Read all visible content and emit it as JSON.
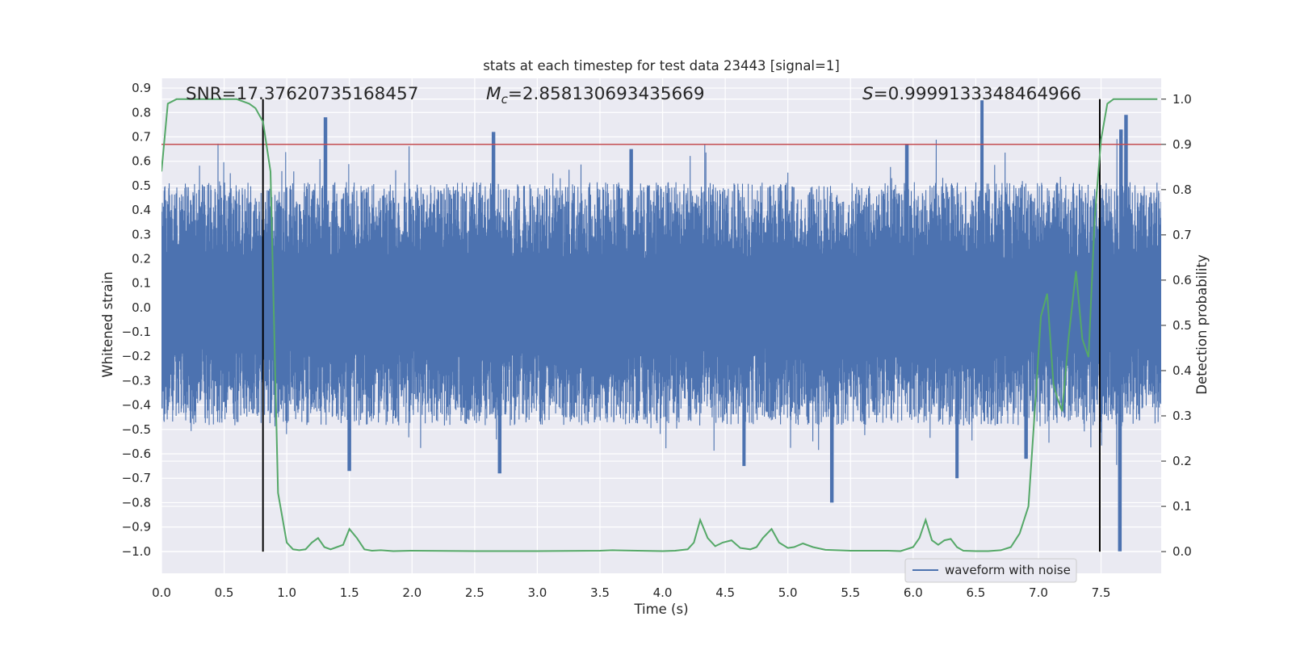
{
  "chart_data": {
    "type": "line",
    "title": "stats at each timestep for test data 23443 [signal=1]",
    "xlabel": "Time (s)",
    "ylabel_left": "Whitened strain",
    "ylabel_right": "Detection probability",
    "xlim": [
      0.0,
      7.98
    ],
    "ylim_left": [
      -1.09,
      0.94
    ],
    "ylim_right": [
      -0.048,
      1.046
    ],
    "x_ticks": [
      0.0,
      0.5,
      1.0,
      1.5,
      2.0,
      2.5,
      3.0,
      3.5,
      4.0,
      4.5,
      5.0,
      5.5,
      6.0,
      6.5,
      7.0,
      7.5
    ],
    "x_tick_labels": [
      "0.0",
      "0.5",
      "1.0",
      "1.5",
      "2.0",
      "2.5",
      "3.0",
      "3.5",
      "4.0",
      "4.5",
      "5.0",
      "5.5",
      "6.0",
      "6.5",
      "7.0",
      "7.5"
    ],
    "y_left_ticks": [
      0.9,
      0.8,
      0.7,
      0.6,
      0.5,
      0.4,
      0.3,
      0.2,
      0.1,
      0.0,
      -0.1,
      -0.2,
      -0.3,
      -0.4,
      -0.5,
      -0.6,
      -0.7,
      -0.8,
      -0.9,
      -1.0
    ],
    "y_left_tick_labels": [
      "0.9",
      "0.8",
      "0.7",
      "0.6",
      "0.5",
      "0.4",
      "0.3",
      "0.2",
      "0.1",
      "0.0",
      "−0.1",
      "−0.2",
      "−0.3",
      "−0.4",
      "−0.5",
      "−0.6",
      "−0.7",
      "−0.8",
      "−0.9",
      "−1.0"
    ],
    "y_right_ticks": [
      1.0,
      0.9,
      0.8,
      0.7,
      0.6,
      0.5,
      0.4,
      0.3,
      0.2,
      0.1,
      0.0
    ],
    "y_right_tick_labels": [
      "1.0",
      "0.9",
      "0.8",
      "0.7",
      "0.6",
      "0.5",
      "0.4",
      "0.3",
      "0.2",
      "0.1",
      "0.0"
    ],
    "annotations": {
      "snr": "SNR=17.37620735168457",
      "mc_symbol": "M",
      "mc_subscript": "c",
      "mc_value": "=2.858130693435669",
      "s_symbol": "S",
      "s_value": "=0.9999133348464966"
    },
    "threshold_probability": 0.9,
    "vertical_markers_x": [
      0.81,
      7.49
    ],
    "series": [
      {
        "name": "waveform with noise",
        "axis": "left",
        "kind": "dense_noise",
        "typical_envelope": [
          -0.26,
          0.29
        ],
        "peaks": [
          [
            1.31,
            0.78
          ],
          [
            2.65,
            0.72
          ],
          [
            6.55,
            0.85
          ],
          [
            7.7,
            0.79
          ],
          [
            7.66,
            0.73
          ],
          [
            3.75,
            0.65
          ],
          [
            5.95,
            0.67
          ]
        ],
        "troughs": [
          [
            7.65,
            -1.0
          ],
          [
            5.35,
            -0.8
          ],
          [
            1.5,
            -0.67
          ],
          [
            2.7,
            -0.68
          ],
          [
            6.35,
            -0.7
          ],
          [
            6.9,
            -0.62
          ],
          [
            4.65,
            -0.65
          ]
        ]
      },
      {
        "name": "detection probability",
        "axis": "right",
        "x": [
          0.0,
          0.05,
          0.12,
          0.2,
          0.3,
          0.4,
          0.5,
          0.6,
          0.7,
          0.75,
          0.81,
          0.87,
          0.93,
          1.0,
          1.05,
          1.1,
          1.15,
          1.2,
          1.25,
          1.3,
          1.35,
          1.4,
          1.45,
          1.5,
          1.56,
          1.62,
          1.68,
          1.75,
          1.85,
          2.0,
          2.5,
          3.0,
          3.5,
          3.6,
          3.8,
          4.0,
          4.1,
          4.2,
          4.25,
          4.3,
          4.36,
          4.42,
          4.48,
          4.55,
          4.62,
          4.7,
          4.75,
          4.8,
          4.87,
          4.93,
          5.0,
          5.05,
          5.12,
          5.2,
          5.3,
          5.5,
          5.8,
          5.9,
          6.0,
          6.05,
          6.1,
          6.15,
          6.2,
          6.25,
          6.3,
          6.35,
          6.4,
          6.5,
          6.6,
          6.7,
          6.78,
          6.85,
          6.92,
          6.98,
          7.02,
          7.07,
          7.12,
          7.15,
          7.19,
          7.24,
          7.3,
          7.35,
          7.4,
          7.45,
          7.5,
          7.55,
          7.6,
          7.7,
          7.8,
          7.95
        ],
        "values": [
          0.84,
          0.99,
          1.0,
          1.0,
          1.0,
          1.0,
          1.0,
          1.0,
          0.99,
          0.98,
          0.95,
          0.84,
          0.13,
          0.02,
          0.005,
          0.003,
          0.005,
          0.02,
          0.03,
          0.01,
          0.005,
          0.01,
          0.015,
          0.05,
          0.03,
          0.005,
          0.002,
          0.003,
          0.001,
          0.002,
          0.001,
          0.001,
          0.002,
          0.003,
          0.002,
          0.001,
          0.002,
          0.005,
          0.02,
          0.07,
          0.03,
          0.012,
          0.02,
          0.025,
          0.008,
          0.005,
          0.01,
          0.03,
          0.05,
          0.02,
          0.008,
          0.01,
          0.018,
          0.01,
          0.004,
          0.002,
          0.002,
          0.001,
          0.01,
          0.03,
          0.07,
          0.025,
          0.015,
          0.025,
          0.028,
          0.01,
          0.002,
          0.001,
          0.001,
          0.003,
          0.01,
          0.04,
          0.1,
          0.35,
          0.52,
          0.57,
          0.37,
          0.34,
          0.31,
          0.47,
          0.62,
          0.47,
          0.43,
          0.74,
          0.91,
          0.99,
          1.0,
          1.0,
          1.0,
          1.0
        ]
      }
    ],
    "legend": {
      "placement": "bottom-right",
      "entries": [
        "waveform with noise"
      ]
    }
  },
  "colors": {
    "plot_bg": "#EAEAF2",
    "grid": "#FFFFFF",
    "strain": "#4C72B0",
    "probability": "#55A868",
    "threshold": "#C44E52",
    "marker": "#000000"
  }
}
